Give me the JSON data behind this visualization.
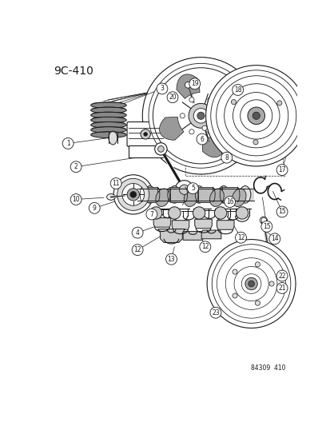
{
  "title": "9C-410",
  "footer": "84309  410",
  "bg_color": "#ffffff",
  "fg_color": "#1a1a1a",
  "fig_width": 4.14,
  "fig_height": 5.33,
  "dpi": 100
}
